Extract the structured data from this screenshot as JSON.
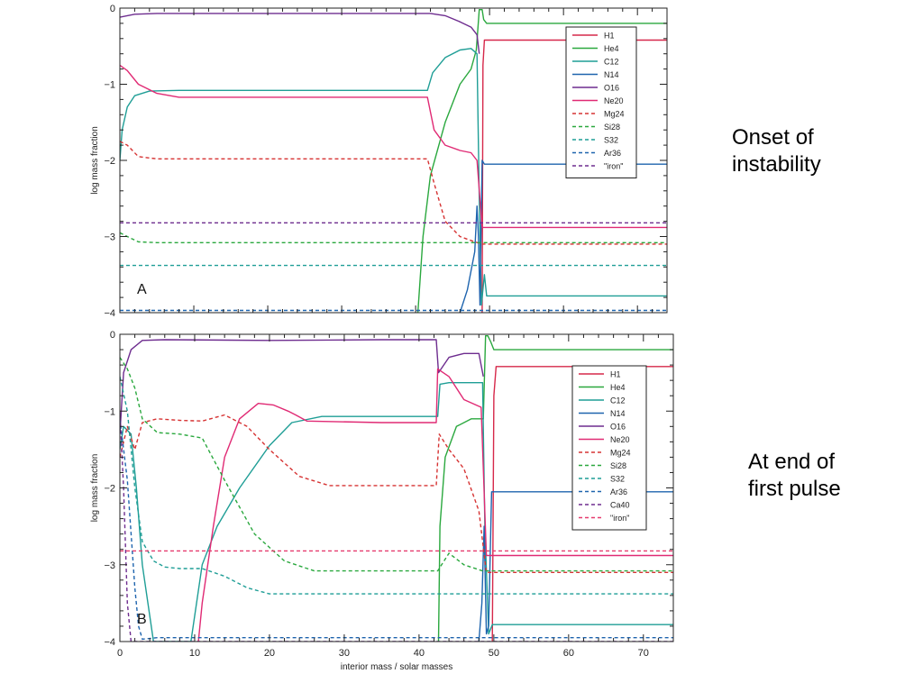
{
  "colors": {
    "H1": "#d6284a",
    "He4": "#2aa83e",
    "C12": "#1f9e96",
    "N14": "#1e64ae",
    "O16": "#6e2d8f",
    "Ne20": "#e02a74",
    "Mg24": "#d63333",
    "Si28": "#2aa83e",
    "S32": "#1f9e96",
    "Ar36": "#1e64ae",
    "Ca40": "#6e2d8f",
    "iron_a": "#6e2d8f",
    "iron_b": "#e63a6e"
  },
  "annotations": {
    "a": [
      "Onset of",
      "instability"
    ],
    "b": [
      "At end of",
      "first pulse"
    ]
  },
  "chart_data": [
    {
      "type": "line",
      "panel_label": "A",
      "xlabel": "",
      "ylabel": "log mass fraction",
      "xlim": [
        0,
        74
      ],
      "ylim": [
        -4,
        0
      ],
      "y_ticks": [
        "0",
        "−1",
        "−2",
        "−3",
        "−4"
      ],
      "x_ticks": [],
      "grid": false,
      "legend_position": "top-right",
      "series": [
        {
          "name": "H1",
          "color_key": "H1",
          "dash": false,
          "x": [
            49.0,
            49.1,
            49.3,
            74.0
          ],
          "y": [
            -4.0,
            -0.75,
            -0.42,
            -0.42
          ]
        },
        {
          "name": "He4",
          "color_key": "He4",
          "dash": false,
          "x": [
            40.3,
            41.0,
            42.0,
            44.0,
            46.0,
            47.5,
            48.2,
            48.4,
            48.6,
            49.0,
            49.2,
            49.6,
            60.0,
            74.0
          ],
          "y": [
            -4.0,
            -3.0,
            -2.2,
            -1.5,
            -1.0,
            -0.8,
            -0.55,
            -0.3,
            -0.02,
            -0.02,
            -0.15,
            -0.2,
            -0.2,
            -0.2
          ]
        },
        {
          "name": "C12",
          "color_key": "C12",
          "dash": false,
          "x": [
            0.0,
            0.3,
            1.0,
            2.0,
            4.0,
            8.0,
            20.0,
            35.0,
            41.6,
            42.3,
            44.0,
            46.0,
            47.5,
            48.3,
            48.6,
            48.9,
            49.3,
            49.6,
            74.0
          ],
          "y": [
            -2.0,
            -1.6,
            -1.3,
            -1.15,
            -1.09,
            -1.08,
            -1.08,
            -1.08,
            -1.08,
            -0.85,
            -0.65,
            -0.55,
            -0.53,
            -0.6,
            -2.5,
            -3.9,
            -3.5,
            -3.78,
            -3.78
          ]
        },
        {
          "name": "N14",
          "color_key": "N14",
          "dash": false,
          "x": [
            46.0,
            47.0,
            48.0,
            48.3,
            48.5,
            48.7,
            49.0,
            49.3,
            60.0,
            74.0
          ],
          "y": [
            -4.0,
            -3.7,
            -3.2,
            -2.6,
            -3.0,
            -3.9,
            -2.0,
            -2.05,
            -2.05,
            -2.05
          ]
        },
        {
          "name": "O16",
          "color_key": "O16",
          "dash": false,
          "x": [
            0.0,
            2.0,
            5.0,
            20.0,
            35.0,
            42.0,
            44.0,
            46.0,
            47.5,
            48.3,
            48.6
          ],
          "y": [
            -0.12,
            -0.08,
            -0.07,
            -0.07,
            -0.07,
            -0.07,
            -0.1,
            -0.18,
            -0.25,
            -0.35,
            -0.6
          ]
        },
        {
          "name": "Ne20",
          "color_key": "Ne20",
          "dash": false,
          "x": [
            0.0,
            1.0,
            2.5,
            5.0,
            8.0,
            20.0,
            35.0,
            41.6,
            42.5,
            44.0,
            46.0,
            47.5,
            48.3,
            49.0,
            50.0,
            74.0
          ],
          "y": [
            -0.75,
            -0.82,
            -1.0,
            -1.12,
            -1.17,
            -1.17,
            -1.17,
            -1.17,
            -1.6,
            -1.8,
            -1.87,
            -1.9,
            -2.0,
            -2.88,
            -2.88,
            -2.88
          ]
        },
        {
          "name": "Mg24",
          "color_key": "Mg24",
          "dash": true,
          "x": [
            0.0,
            1.0,
            2.5,
            5.0,
            10.0,
            20.0,
            35.0,
            41.6,
            42.5,
            44.0,
            46.0,
            48.0,
            49.0,
            74.0
          ],
          "y": [
            -1.75,
            -1.8,
            -1.95,
            -1.98,
            -1.98,
            -1.98,
            -1.98,
            -1.98,
            -2.3,
            -2.8,
            -3.0,
            -3.07,
            -3.1,
            -3.1
          ]
        },
        {
          "name": "Si28",
          "color_key": "Si28",
          "dash": true,
          "x": [
            0.0,
            1.0,
            2.5,
            5.0,
            20.0,
            48.0,
            74.0
          ],
          "y": [
            -2.95,
            -3.0,
            -3.07,
            -3.08,
            -3.08,
            -3.08,
            -3.08
          ]
        },
        {
          "name": "S32",
          "color_key": "S32",
          "dash": true,
          "x": [
            0.0,
            74.0
          ],
          "y": [
            -3.38,
            -3.38
          ]
        },
        {
          "name": "Ar36",
          "color_key": "Ar36",
          "dash": true,
          "x": [
            0.0,
            74.0
          ],
          "y": [
            -3.97,
            -3.97
          ]
        },
        {
          "name": "\"iron\"",
          "color_key": "iron_a",
          "dash": true,
          "x": [
            0.0,
            74.0
          ],
          "y": [
            -2.82,
            -2.82
          ]
        }
      ]
    },
    {
      "type": "line",
      "panel_label": "B",
      "xlabel": "interior mass / solar masses",
      "ylabel": "log mass fraction",
      "xlim": [
        0,
        74
      ],
      "ylim": [
        -4,
        0
      ],
      "y_ticks": [
        "0",
        "−1",
        "−2",
        "−3",
        "−4"
      ],
      "x_ticks": [
        "0",
        "10",
        "20",
        "30",
        "40",
        "50",
        "60",
        "70"
      ],
      "grid": false,
      "legend_position": "top-right",
      "series": [
        {
          "name": "H1",
          "color_key": "H1",
          "dash": false,
          "x": [
            49.8,
            50.0,
            50.3,
            74.0
          ],
          "y": [
            -4.0,
            -0.8,
            -0.42,
            -0.42
          ]
        },
        {
          "name": "He4",
          "color_key": "He4",
          "dash": false,
          "x": [
            42.6,
            42.8,
            43.5,
            45.0,
            47.0,
            48.6,
            48.9,
            49.2,
            49.6,
            50.0,
            74.0
          ],
          "y": [
            -4.0,
            -2.5,
            -1.6,
            -1.2,
            -1.1,
            -1.1,
            -0.02,
            -0.02,
            -0.1,
            -0.2,
            -0.2
          ]
        },
        {
          "name": "C12",
          "color_key": "C12",
          "dash": false,
          "x": [
            0.0,
            0.5,
            1.5,
            2.2,
            3.0,
            4.5,
            9.5,
            11.0,
            13.0,
            16.0,
            20.0,
            23.0,
            27.0,
            35.0,
            42.5,
            42.8,
            44.0,
            48.5,
            48.8,
            49.3,
            49.8,
            74.0
          ],
          "y": [
            -1.5,
            -1.2,
            -1.3,
            -2.0,
            -3.0,
            -4.0,
            -4.0,
            -3.0,
            -2.5,
            -2.0,
            -1.45,
            -1.15,
            -1.07,
            -1.07,
            -1.07,
            -0.65,
            -0.63,
            -0.63,
            -2.5,
            -3.9,
            -3.78,
            -3.78
          ]
        },
        {
          "name": "N14",
          "color_key": "N14",
          "dash": false,
          "x": [
            48.0,
            48.4,
            48.7,
            49.0,
            49.3,
            49.7,
            60.0,
            74.0
          ],
          "y": [
            -4.0,
            -3.5,
            -2.5,
            -3.9,
            -3.8,
            -2.05,
            -2.05,
            -2.05
          ]
        },
        {
          "name": "O16",
          "color_key": "O16",
          "dash": false,
          "x": [
            0.0,
            0.5,
            1.5,
            3.0,
            6.0,
            20.0,
            35.0,
            42.3,
            42.6,
            44.0,
            46.0,
            48.0,
            48.6
          ],
          "y": [
            -1.3,
            -0.5,
            -0.2,
            -0.08,
            -0.07,
            -0.08,
            -0.07,
            -0.07,
            -0.5,
            -0.3,
            -0.25,
            -0.25,
            -0.55
          ]
        },
        {
          "name": "Ne20",
          "color_key": "Ne20",
          "dash": false,
          "x": [
            10.5,
            11.0,
            12.5,
            14.0,
            16.0,
            18.5,
            20.5,
            22.5,
            23.5,
            25.0,
            35.0,
            42.3,
            42.5,
            44.0,
            46.0,
            48.3,
            49.0,
            50.0,
            74.0
          ],
          "y": [
            -4.0,
            -3.5,
            -2.5,
            -1.6,
            -1.1,
            -0.9,
            -0.92,
            -1.0,
            -1.05,
            -1.13,
            -1.15,
            -1.15,
            -0.45,
            -0.55,
            -0.85,
            -0.95,
            -2.88,
            -2.88,
            -2.88
          ]
        },
        {
          "name": "Mg24",
          "color_key": "Mg24",
          "dash": true,
          "x": [
            0.0,
            1.0,
            2.0,
            3.0,
            5.0,
            8.0,
            11.0,
            14.0,
            17.0,
            20.0,
            24.0,
            28.0,
            35.0,
            42.3,
            42.7,
            44.0,
            46.0,
            48.0,
            49.0,
            74.0
          ],
          "y": [
            -1.6,
            -1.2,
            -1.5,
            -1.15,
            -1.1,
            -1.12,
            -1.13,
            -1.05,
            -1.2,
            -1.5,
            -1.85,
            -1.97,
            -1.97,
            -1.97,
            -1.3,
            -1.5,
            -1.75,
            -2.3,
            -3.1,
            -3.1
          ]
        },
        {
          "name": "Si28",
          "color_key": "Si28",
          "dash": true,
          "x": [
            0.0,
            1.0,
            2.0,
            3.0,
            5.0,
            8.0,
            11.0,
            14.0,
            18.0,
            22.0,
            26.0,
            35.0,
            42.5,
            44.0,
            46.0,
            48.5,
            74.0
          ],
          "y": [
            -0.3,
            -0.45,
            -0.7,
            -1.1,
            -1.28,
            -1.3,
            -1.35,
            -1.9,
            -2.6,
            -2.95,
            -3.08,
            -3.08,
            -3.08,
            -2.85,
            -3.0,
            -3.08,
            -3.08
          ]
        },
        {
          "name": "S32",
          "color_key": "S32",
          "dash": true,
          "x": [
            0.0,
            1.0,
            2.0,
            3.0,
            4.5,
            6.0,
            8.0,
            11.0,
            14.0,
            17.0,
            20.0,
            24.0,
            74.0
          ],
          "y": [
            -0.55,
            -1.0,
            -2.0,
            -2.7,
            -2.95,
            -3.03,
            -3.05,
            -3.05,
            -3.15,
            -3.3,
            -3.38,
            -3.38,
            -3.38
          ]
        },
        {
          "name": "Ar36",
          "color_key": "Ar36",
          "dash": true,
          "x": [
            0.0,
            1.0,
            2.0,
            2.5,
            3.0,
            5.0,
            74.0
          ],
          "y": [
            -1.1,
            -1.9,
            -3.3,
            -3.8,
            -3.97,
            -3.95,
            -3.95
          ]
        },
        {
          "name": "Ca40",
          "color_key": "Ca40",
          "dash": true,
          "x": [
            0.0,
            0.5,
            1.0,
            1.5,
            2.0,
            74.0
          ],
          "y": [
            -1.0,
            -2.0,
            -3.5,
            -4.0,
            -4.0,
            -4.0
          ]
        },
        {
          "name": "\"iron\"",
          "color_key": "iron_b",
          "dash": true,
          "x": [
            0.0,
            74.0
          ],
          "y": [
            -2.82,
            -2.82
          ]
        }
      ]
    }
  ]
}
